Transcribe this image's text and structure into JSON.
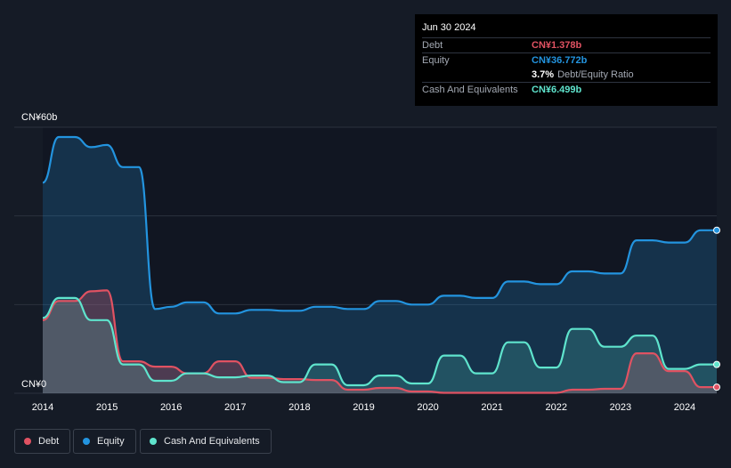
{
  "tooltip": {
    "date": "Jun 30 2024",
    "debt_label": "Debt",
    "debt_value": "CN¥1.378b",
    "equity_label": "Equity",
    "equity_value": "CN¥36.772b",
    "ratio_value": "3.7%",
    "ratio_label": "Debt/Equity Ratio",
    "cash_label": "Cash And Equivalents",
    "cash_value": "CN¥6.499b"
  },
  "legend": {
    "debt": "Debt",
    "equity": "Equity",
    "cash": "Cash And Equivalents"
  },
  "colors": {
    "debt": "#e05262",
    "equity": "#2394df",
    "cash": "#5fe4cd",
    "background": "#151b26",
    "plot_background": "#111622"
  },
  "chart_data": {
    "type": "area",
    "ylim": [
      0,
      60
    ],
    "ytick_labels": [
      "CN¥60b",
      "CN¥0"
    ],
    "xlim": [
      2014.0,
      2024.5
    ],
    "xticks": [
      2014,
      2015,
      2016,
      2017,
      2018,
      2019,
      2020,
      2021,
      2022,
      2023,
      2024
    ],
    "xtick_labels": [
      "2014",
      "2015",
      "2016",
      "2017",
      "2018",
      "2019",
      "2020",
      "2021",
      "2022",
      "2023",
      "2024"
    ],
    "grid": true,
    "legend_position": "bottom-left",
    "series": [
      {
        "name": "Equity",
        "color_key": "equity",
        "x": [
          2014.0,
          2014.25,
          2014.5,
          2014.75,
          2015.0,
          2015.25,
          2015.5,
          2015.75,
          2016.0,
          2016.25,
          2016.5,
          2016.75,
          2017.0,
          2017.25,
          2017.5,
          2017.75,
          2018.0,
          2018.25,
          2018.5,
          2018.75,
          2019.0,
          2019.25,
          2019.5,
          2019.75,
          2020.0,
          2020.25,
          2020.5,
          2020.75,
          2021.0,
          2021.25,
          2021.5,
          2021.75,
          2022.0,
          2022.25,
          2022.5,
          2022.75,
          2023.0,
          2023.25,
          2023.5,
          2023.75,
          2024.0,
          2024.25,
          2024.5
        ],
        "y": [
          47.5,
          57.8,
          57.8,
          55.5,
          56.0,
          51.0,
          51.0,
          19.0,
          19.5,
          20.5,
          20.5,
          18.0,
          18.0,
          18.8,
          18.8,
          18.6,
          18.6,
          19.5,
          19.5,
          19.0,
          19.0,
          20.8,
          20.8,
          20.0,
          20.0,
          22.0,
          22.0,
          21.5,
          21.5,
          25.2,
          25.2,
          24.6,
          24.6,
          27.5,
          27.5,
          27.0,
          27.0,
          34.5,
          34.5,
          34.0,
          34.0,
          36.772,
          36.772
        ]
      },
      {
        "name": "Debt",
        "color_key": "debt",
        "x": [
          2014.0,
          2014.25,
          2014.5,
          2014.75,
          2015.0,
          2015.25,
          2015.5,
          2015.75,
          2016.0,
          2016.25,
          2016.5,
          2016.75,
          2017.0,
          2017.25,
          2017.5,
          2017.75,
          2018.0,
          2018.25,
          2018.5,
          2018.75,
          2019.0,
          2019.25,
          2019.5,
          2019.75,
          2020.0,
          2020.25,
          2020.5,
          2020.75,
          2021.0,
          2021.25,
          2021.5,
          2021.75,
          2022.0,
          2022.25,
          2022.5,
          2022.75,
          2023.0,
          2023.25,
          2023.5,
          2023.75,
          2024.0,
          2024.25,
          2024.5
        ],
        "y": [
          16.5,
          20.8,
          20.8,
          23.0,
          23.2,
          7.2,
          7.2,
          6.0,
          6.0,
          4.5,
          4.5,
          7.2,
          7.2,
          3.5,
          3.5,
          3.2,
          3.2,
          3.0,
          3.0,
          0.8,
          0.8,
          1.2,
          1.2,
          0.4,
          0.4,
          0.1,
          0.1,
          0.1,
          0.1,
          0.1,
          0.1,
          0.1,
          0.1,
          0.8,
          0.8,
          1.0,
          1.0,
          9.0,
          9.0,
          5.0,
          5.0,
          1.378,
          1.378
        ]
      },
      {
        "name": "Cash And Equivalents",
        "color_key": "cash",
        "x": [
          2014.0,
          2014.25,
          2014.5,
          2014.75,
          2015.0,
          2015.25,
          2015.5,
          2015.75,
          2016.0,
          2016.25,
          2016.5,
          2016.75,
          2017.0,
          2017.25,
          2017.5,
          2017.75,
          2018.0,
          2018.25,
          2018.5,
          2018.75,
          2019.0,
          2019.25,
          2019.5,
          2019.75,
          2020.0,
          2020.25,
          2020.5,
          2020.75,
          2021.0,
          2021.25,
          2021.5,
          2021.75,
          2022.0,
          2022.25,
          2022.5,
          2022.75,
          2023.0,
          2023.25,
          2023.5,
          2023.75,
          2024.0,
          2024.25,
          2024.5
        ],
        "y": [
          17.0,
          21.5,
          21.5,
          16.5,
          16.5,
          6.5,
          6.5,
          2.8,
          2.8,
          4.5,
          4.5,
          3.6,
          3.6,
          4.0,
          4.0,
          2.5,
          2.5,
          6.5,
          6.5,
          1.8,
          1.8,
          4.0,
          4.0,
          2.2,
          2.2,
          8.5,
          8.5,
          4.5,
          4.5,
          11.5,
          11.5,
          5.8,
          5.8,
          14.5,
          14.5,
          10.5,
          10.5,
          13.0,
          13.0,
          5.5,
          5.5,
          6.499,
          6.499
        ]
      }
    ]
  }
}
